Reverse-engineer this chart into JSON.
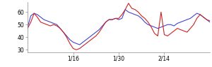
{
  "blue_y": [
    48,
    57,
    59,
    58,
    56,
    54,
    53,
    52,
    51,
    50,
    47,
    44,
    41,
    38,
    36,
    35,
    34,
    36,
    38,
    40,
    42,
    44,
    46,
    49,
    52,
    54,
    54,
    55,
    54,
    55,
    62,
    60,
    59,
    58,
    57,
    55,
    52,
    50,
    49,
    48,
    47,
    48,
    49,
    50,
    50,
    49,
    51,
    52,
    53,
    54,
    55,
    57,
    59,
    58,
    56,
    54,
    52
  ],
  "red_y": [
    47,
    52,
    59,
    56,
    52,
    51,
    50,
    49,
    50,
    49,
    47,
    44,
    40,
    35,
    31,
    30,
    31,
    33,
    35,
    37,
    39,
    41,
    44,
    48,
    52,
    54,
    54,
    55,
    55,
    58,
    62,
    67,
    63,
    62,
    60,
    57,
    55,
    52,
    48,
    43,
    41,
    60,
    42,
    41,
    43,
    45,
    47,
    46,
    45,
    44,
    47,
    50,
    55,
    58,
    56,
    54,
    53
  ],
  "xlim": [
    0,
    56
  ],
  "ylim": [
    28,
    68
  ],
  "yticks": [
    30,
    40,
    50,
    60
  ],
  "xtick_positions": [
    14,
    28,
    42
  ],
  "xtick_labels": [
    "1/16",
    "1/30",
    "2/14"
  ],
  "blue_color": "#4444cc",
  "red_color": "#cc2222",
  "bg_color": "#ffffff",
  "linewidth": 0.8
}
